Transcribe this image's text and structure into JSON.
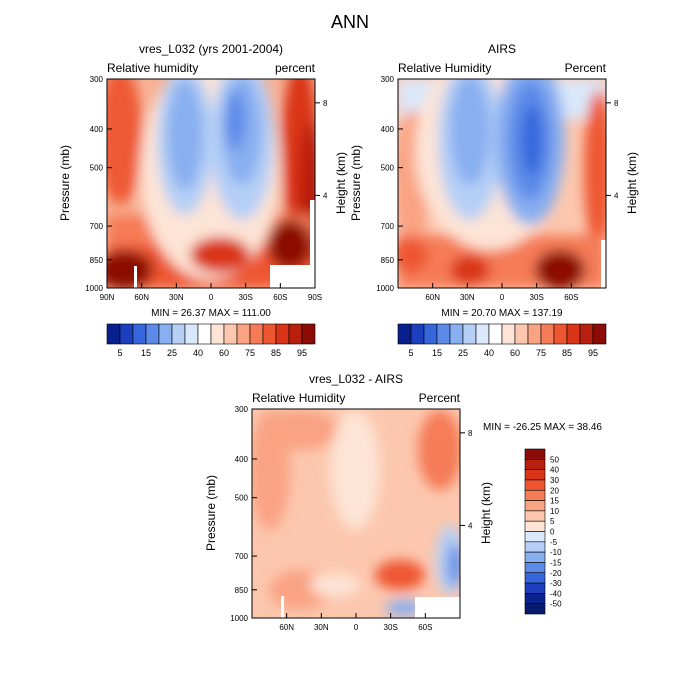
{
  "page_title": "ANN",
  "chart_data": [
    {
      "type": "heatmap",
      "id": "model",
      "title": "vres_L032 (yrs 2001-2004)",
      "left_label": "Relative humidity",
      "right_label": "percent",
      "ylabel": "Pressure (mb)",
      "ylabel_right": "Height (km)",
      "y_ticks": [
        "300",
        "400",
        "500",
        "700",
        "850",
        "1000"
      ],
      "y_tick_values": [
        300,
        400,
        500,
        700,
        850,
        1000
      ],
      "x_ticks": [
        "90N",
        "60N",
        "30N",
        "0",
        "30S",
        "60S",
        "90S"
      ],
      "x_tick_values": [
        90,
        60,
        30,
        0,
        -30,
        -60,
        -90
      ],
      "xlim": [
        90,
        -90
      ],
      "height_ticks": [
        "8",
        "4"
      ],
      "height_tick_values": [
        8,
        4
      ],
      "min_text": "MIN =  26.37  MAX = 111.00",
      "min": 26.37,
      "max": 111.0,
      "colorbar": "rh"
    },
    {
      "type": "heatmap",
      "id": "obs",
      "title": "AIRS",
      "left_label": "Relative Humidity",
      "right_label": "Percent",
      "ylabel": "Pressure (mb)",
      "ylabel_right": "Height (km)",
      "y_ticks": [
        "300",
        "400",
        "500",
        "700",
        "850",
        "1000"
      ],
      "y_tick_values": [
        300,
        400,
        500,
        700,
        850,
        1000
      ],
      "x_ticks": [
        "60N",
        "30N",
        "0",
        "30S",
        "60S"
      ],
      "x_tick_values": [
        60,
        30,
        0,
        -30,
        -60
      ],
      "xlim": [
        90,
        -90
      ],
      "height_ticks": [
        "8",
        "4"
      ],
      "height_tick_values": [
        8,
        4
      ],
      "min_text": "MIN =  20.70  MAX = 137.19",
      "min": 20.7,
      "max": 137.19,
      "colorbar": "rh"
    },
    {
      "type": "heatmap",
      "id": "diff",
      "title": "vres_L032 - AIRS",
      "left_label": "Relative Humidity",
      "right_label": "Percent",
      "ylabel": "Pressure (mb)",
      "ylabel_right": "Height (km)",
      "y_ticks": [
        "300",
        "400",
        "500",
        "700",
        "850",
        "1000"
      ],
      "y_tick_values": [
        300,
        400,
        500,
        700,
        850,
        1000
      ],
      "x_ticks": [
        "60N",
        "30N",
        "0",
        "30S",
        "60S"
      ],
      "x_tick_values": [
        60,
        30,
        0,
        -30,
        -60
      ],
      "xlim": [
        90,
        -90
      ],
      "height_ticks": [
        "8",
        "4"
      ],
      "height_tick_values": [
        8,
        4
      ],
      "min_text": "MIN = -26.25  MAX =  38.46",
      "min": -26.25,
      "max": 38.46,
      "colorbar": "diff"
    }
  ],
  "colorbars": {
    "rh": {
      "labels": [
        "5",
        "15",
        "25",
        "40",
        "60",
        "75",
        "85",
        "95"
      ],
      "colors": [
        "#08208e",
        "#1c3fc0",
        "#3566dc",
        "#5b8ae8",
        "#88aff0",
        "#b5cff6",
        "#dae8fb",
        "#ffffff",
        "#fde4d6",
        "#fcc7ae",
        "#f9a383",
        "#f57c57",
        "#ee5632",
        "#da3418",
        "#b81f0f",
        "#8c0b06"
      ]
    },
    "diff": {
      "labels": [
        "50",
        "40",
        "30",
        "20",
        "15",
        "10",
        "5",
        "0",
        "-5",
        "-10",
        "-15",
        "-20",
        "-30",
        "-40",
        "-50"
      ],
      "colors": [
        "#8c0b06",
        "#b81f0f",
        "#da3418",
        "#ee5632",
        "#f57c57",
        "#f9a383",
        "#fcc7ae",
        "#fde4d6",
        "#dae8fb",
        "#b5cff6",
        "#88aff0",
        "#5b8ae8",
        "#3566dc",
        "#1c3fc0",
        "#0b238f",
        "#061b6e"
      ]
    }
  }
}
